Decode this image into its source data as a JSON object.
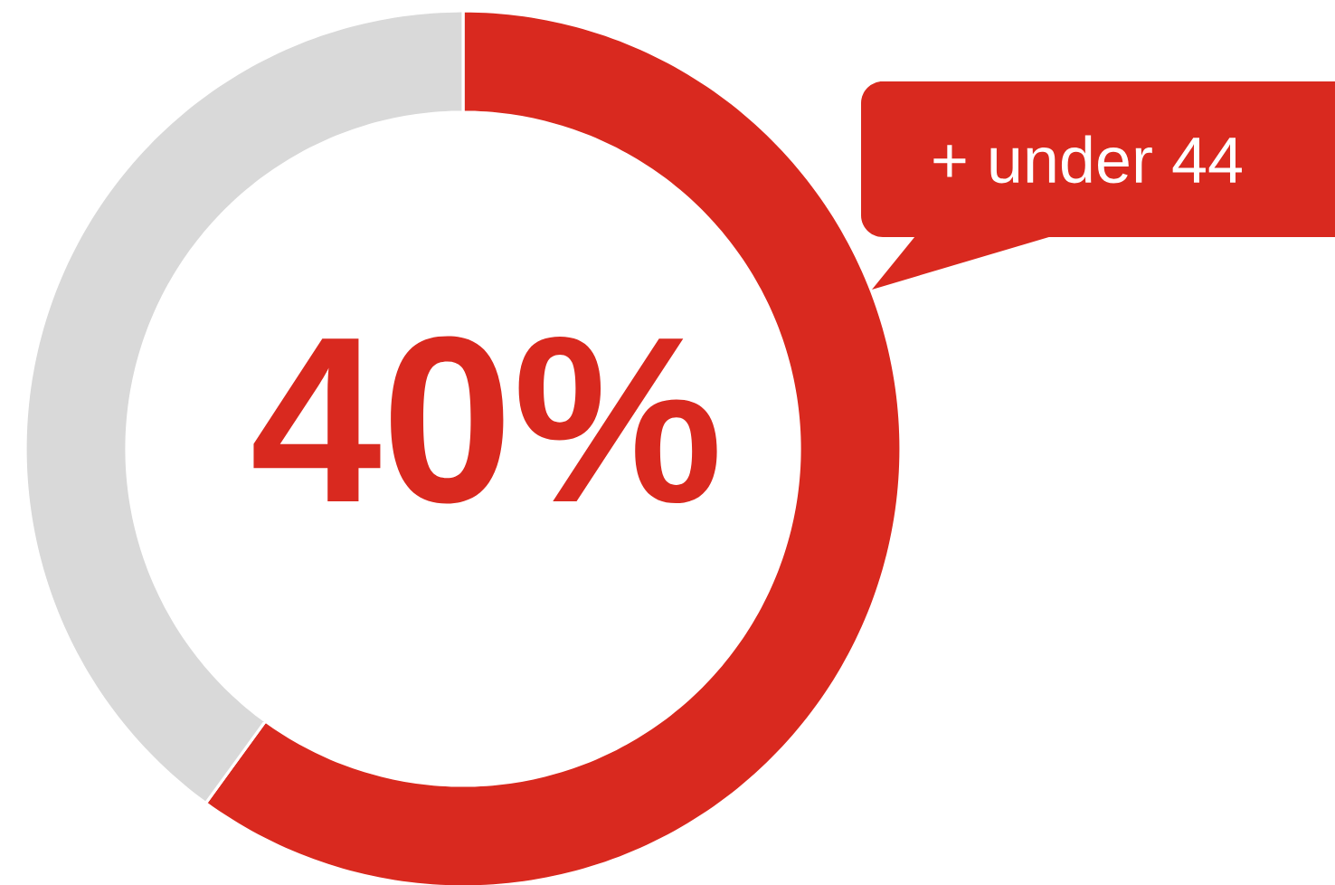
{
  "chart_data": {
    "type": "donut",
    "categories": [
      null,
      null
    ],
    "values": [
      60,
      40
    ],
    "colors": [
      "#d9291f",
      "#d9d9d9"
    ],
    "annotations": [
      "40%",
      "+ under 44"
    ]
  }
}
